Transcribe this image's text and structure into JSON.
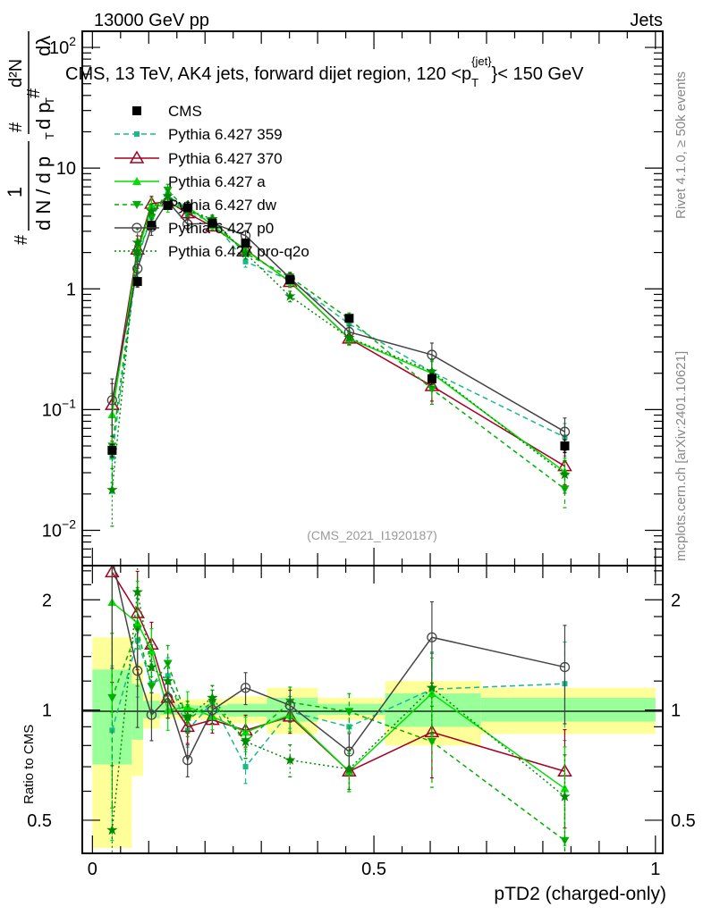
{
  "header": {
    "left": "13000 GeV pp",
    "right": "Jets"
  },
  "side_text": {
    "rivet": "Rivet 4.1.0, ≥ 50k events",
    "mcplots": "mcplots.cern.ch [arXiv:2401.10621]"
  },
  "watermark": "(CMS_2021_I1920187)",
  "chart_data": {
    "type": "line",
    "title": {
      "pre": "CMS, 13 TeV, AK4 jets, forward dijet region, 120 <p",
      "sub": "T",
      "sup": "{jet}",
      "post": "}< 150 GeV"
    },
    "ylabel": {
      "hash1": "#",
      "num1": "1",
      "den1": "d N / d p",
      "den1_sub": "T",
      "hash2": "#",
      "den2": "d p",
      "den2_sub": "T",
      "hash3": "#",
      "num2": "d²N",
      "den2b": "dλ"
    },
    "ratio_ylabel": "Ratio to CMS",
    "xlabel": "pTD2 (charged-only)",
    "xlim": [
      -0.018,
      1.013
    ],
    "ylim": [
      0.0051,
      136
    ],
    "yscale": "log",
    "ratio_ylim": [
      0.406,
      2.48
    ],
    "x_ticks": [
      "0",
      "0.5",
      "1"
    ],
    "y_ticks": [
      {
        "base": "10",
        "exp": "2",
        "v": 100
      },
      {
        "base": "10",
        "exp": "",
        "v": 10
      },
      {
        "base": "1",
        "exp": "",
        "v": 1
      },
      {
        "base": "10",
        "exp": "−1",
        "v": 0.1
      },
      {
        "base": "10",
        "exp": "−2",
        "v": 0.01
      }
    ],
    "ratio_ticks": [
      {
        "label": "2",
        "v": 2
      },
      {
        "label": "1",
        "v": 1
      },
      {
        "label": "0.5",
        "v": 0.5
      }
    ],
    "x": [
      0.035,
      0.08,
      0.105,
      0.134,
      0.169,
      0.213,
      0.272,
      0.351,
      0.456,
      0.603,
      0.839
    ],
    "bin_edges": [
      0,
      0.07,
      0.09,
      0.12,
      0.15,
      0.19,
      0.24,
      0.31,
      0.4,
      0.52,
      0.69,
      1.0
    ],
    "data": {
      "name": "CMS",
      "values": [
        0.046,
        1.15,
        3.36,
        4.9,
        4.7,
        3.5,
        2.4,
        1.19,
        0.57,
        0.18,
        0.05
      ],
      "rel_err": [
        0.12,
        0.08,
        0.05,
        0.04,
        0.04,
        0.04,
        0.05,
        0.06,
        0.06,
        0.1,
        0.12
      ],
      "band_total": [
        [
          0.42,
          1.58
        ],
        [
          0.66,
          1.34
        ],
        [
          0.89,
          1.11
        ],
        [
          0.95,
          1.08
        ],
        [
          0.94,
          1.07
        ],
        [
          0.94,
          1.07
        ],
        [
          0.92,
          1.09
        ],
        [
          0.86,
          1.15
        ],
        [
          0.94,
          1.08
        ],
        [
          0.8,
          1.2
        ],
        [
          0.86,
          1.15
        ]
      ],
      "band_stat": [
        [
          0.71,
          1.29
        ],
        [
          0.83,
          1.18
        ],
        [
          0.95,
          1.06
        ],
        [
          0.97,
          1.04
        ],
        [
          0.97,
          1.03
        ],
        [
          0.97,
          1.03
        ],
        [
          0.96,
          1.04
        ],
        [
          0.93,
          1.08
        ],
        [
          0.97,
          1.04
        ],
        [
          0.9,
          1.11
        ],
        [
          0.93,
          1.08
        ]
      ]
    },
    "mc_rel_err": [
      0.5,
      0.3,
      0.15,
      0.12,
      0.1,
      0.08,
      0.1,
      0.1,
      0.12,
      0.25,
      0.3
    ],
    "series": [
      {
        "name": "Pythia 6.427 359",
        "color": "#1ab98a",
        "marker": "square-small",
        "dash": "6,4",
        "ratio": [
          0.88,
          1.55,
          1.18,
          1.24,
          0.88,
          1.05,
          0.7,
          0.99,
          0.9,
          1.14,
          1.18
        ]
      },
      {
        "name": "Pythia 6.427 370",
        "color": "#a50021",
        "marker": "triangle-open",
        "dash": "",
        "ratio": [
          2.38,
          1.84,
          1.51,
          1.08,
          0.9,
          0.94,
          0.88,
          0.96,
          0.68,
          0.87,
          0.68
        ]
      },
      {
        "name": "Pythia 6.427 a",
        "color": "#00e000",
        "marker": "triangle",
        "dash": "",
        "ratio": [
          1.97,
          1.73,
          1.45,
          1.0,
          1.02,
          0.96,
          0.87,
          0.97,
          0.68,
          1.11,
          0.61
        ]
      },
      {
        "name": "Pythia 6.427 dw",
        "color": "#00b000",
        "marker": "triangle-down",
        "dash": "5,4",
        "ratio": [
          1.08,
          1.66,
          1.16,
          1.34,
          0.94,
          1.05,
          0.82,
          1.05,
          0.99,
          0.82,
          0.44
        ]
      },
      {
        "name": "Pythia 6.427 p0",
        "color": "#444444",
        "marker": "circle-open",
        "dash": "",
        "ratio": [
          2.6,
          1.28,
          0.97,
          1.08,
          0.73,
          1.0,
          1.15,
          1.03,
          0.77,
          1.58,
          1.31
        ]
      },
      {
        "name": "Pythia 6.427 pro-q2o",
        "color": "#008a00",
        "marker": "star",
        "dash": "2,3",
        "ratio": [
          0.47,
          2.1,
          1.31,
          1.2,
          0.96,
          1.08,
          0.82,
          0.73,
          0.69,
          1.15,
          0.58
        ]
      }
    ],
    "legend": "top-left",
    "colors": {
      "band_total": "#ffff99",
      "band_stat": "#99ff99"
    }
  }
}
